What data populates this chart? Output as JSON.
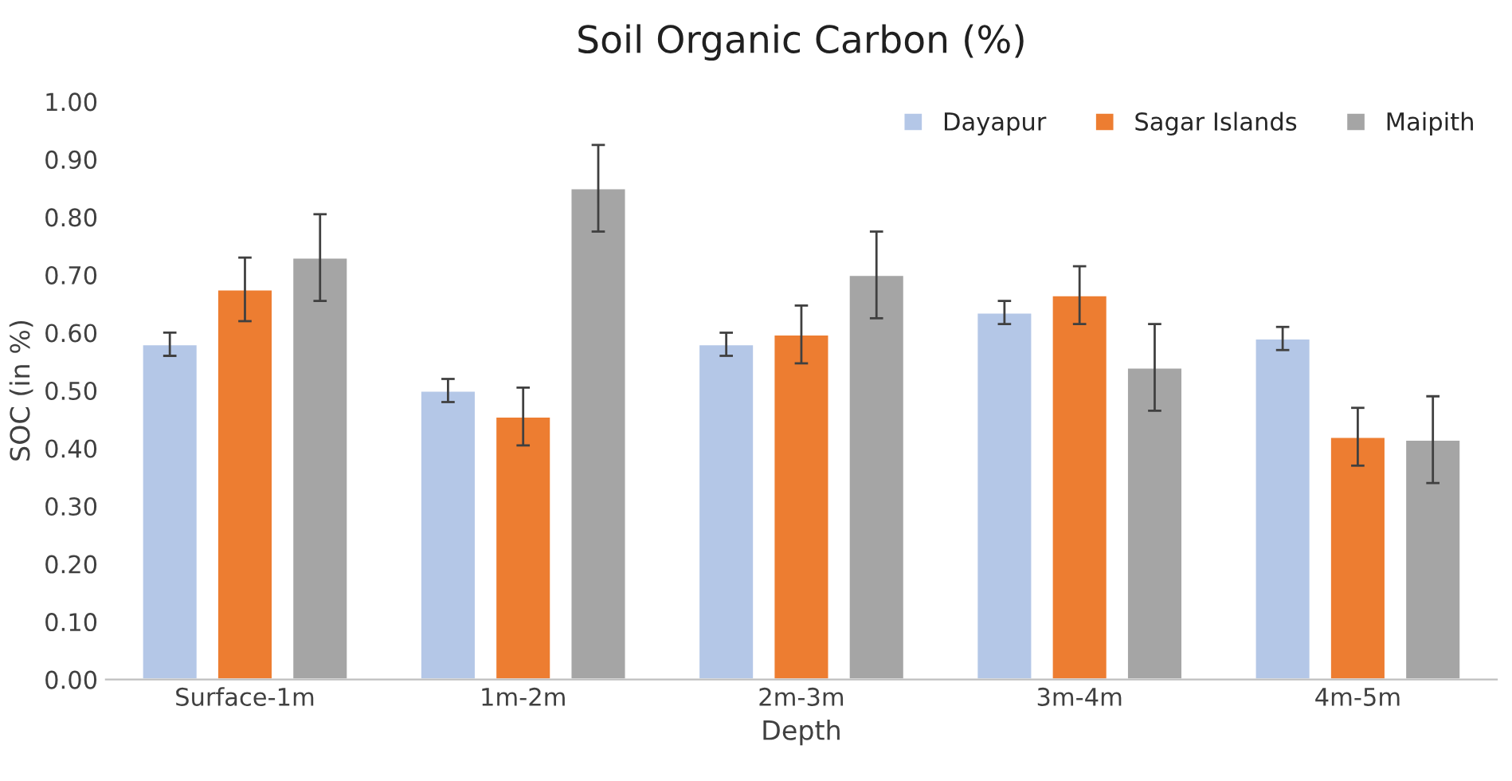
{
  "chart_data": {
    "type": "bar",
    "title": "Soil Organic Carbon (%)",
    "xlabel": "Depth",
    "ylabel": "SOC (in %)",
    "categories": [
      "Surface-1m",
      "1m-2m",
      "2m-3m",
      "3m-4m",
      "4m-5m"
    ],
    "series": [
      {
        "name": "Dayapur",
        "color": "#b4c7e7",
        "values": [
          0.58,
          0.5,
          0.58,
          0.635,
          0.59
        ],
        "errors": [
          0.02,
          0.02,
          0.02,
          0.02,
          0.02
        ]
      },
      {
        "name": "Sagar Islands",
        "color": "#ed7d31",
        "values": [
          0.675,
          0.455,
          0.597,
          0.665,
          0.42
        ],
        "errors": [
          0.055,
          0.05,
          0.05,
          0.05,
          0.05
        ]
      },
      {
        "name": "Maipith",
        "color": "#a5a5a5",
        "values": [
          0.73,
          0.85,
          0.7,
          0.54,
          0.415
        ],
        "errors": [
          0.075,
          0.075,
          0.075,
          0.075,
          0.075
        ]
      }
    ],
    "ylim": [
      0,
      1
    ],
    "yticks": [
      {
        "value": 0,
        "label": "0.00"
      },
      {
        "value": 0.1,
        "label": "0.10"
      },
      {
        "value": 0.2,
        "label": "0.20"
      },
      {
        "value": 0.3,
        "label": "0.30"
      },
      {
        "value": 0.4,
        "label": "0.40"
      },
      {
        "value": 0.5,
        "label": "0.50"
      },
      {
        "value": 0.6,
        "label": "0.60"
      },
      {
        "value": 0.7,
        "label": "0.70"
      },
      {
        "value": 0.8,
        "label": "0.80"
      },
      {
        "value": 0.9,
        "label": "0.90"
      },
      {
        "value": 1,
        "label": "1.00"
      }
    ],
    "grid": false,
    "legend": "top right"
  }
}
